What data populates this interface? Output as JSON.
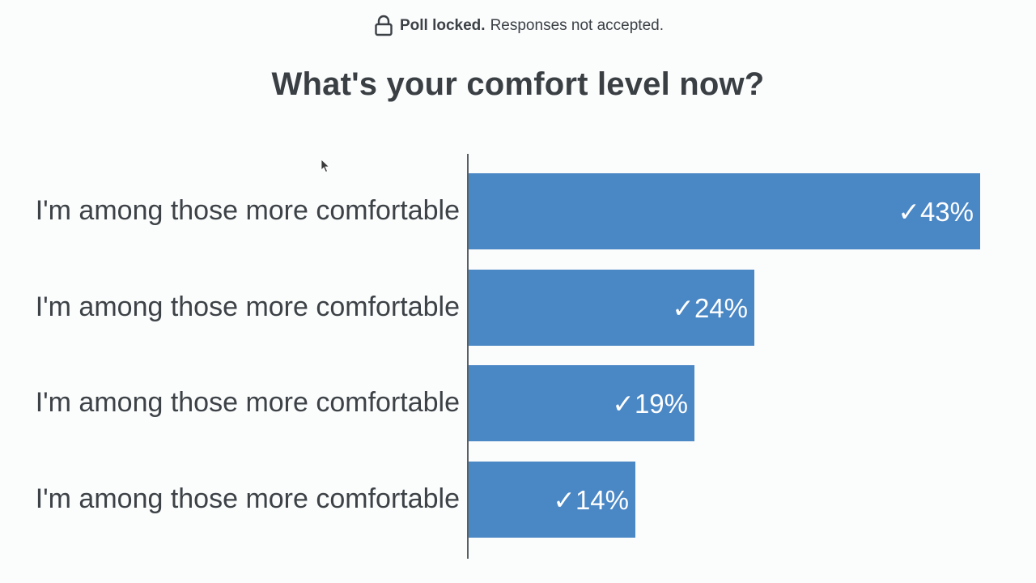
{
  "status": {
    "icon": "lock-icon",
    "bold": "Poll locked.",
    "text": "Responses not accepted."
  },
  "poll": {
    "question": "What's your comfort level now?"
  },
  "chart_data": {
    "type": "bar",
    "orientation": "horizontal",
    "categories": [
      "I'm among those more comfortable",
      "I'm among those more comfortable",
      "I'm among those more comfortable",
      "I'm among those more comfortable"
    ],
    "values": [
      43,
      24,
      19,
      14
    ],
    "data_labels": [
      "✓43%",
      "✓24%",
      "✓19%",
      "✓14%"
    ],
    "title": "What's your comfort level now?",
    "xlim": [
      0,
      43
    ],
    "grid": false,
    "color": "#4a87c5"
  }
}
